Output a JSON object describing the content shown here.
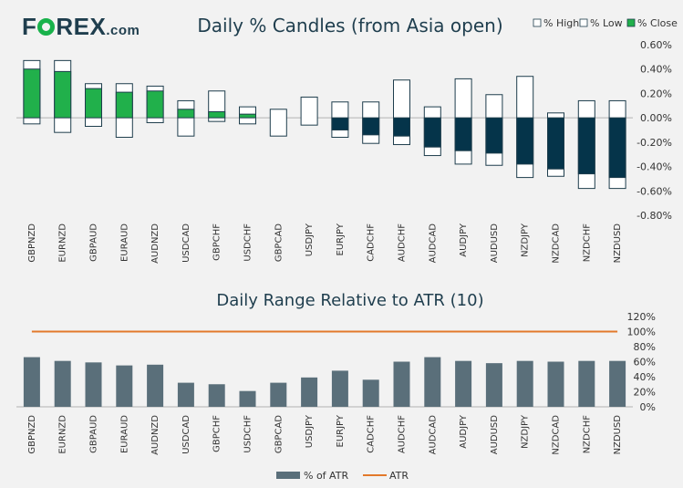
{
  "brand": {
    "part1": "F",
    "part2": "REX",
    "domain": ".com"
  },
  "chart_data": [
    {
      "type": "candlestick",
      "title": "Daily % Candles (from Asia open)",
      "ylim": [
        -0.8,
        0.6
      ],
      "yticks": [
        0.6,
        0.4,
        0.2,
        0.0,
        -0.2,
        -0.4,
        -0.6,
        -0.8
      ],
      "ytick_labels": [
        "0.60%",
        "0.40%",
        "0.20%",
        "0.00%",
        "-0.20%",
        "-0.40%",
        "-0.60%",
        "-0.80%"
      ],
      "legend": [
        {
          "name": "% High",
          "color": "#ffffff"
        },
        {
          "name": "% Low",
          "color": "#ffffff"
        },
        {
          "name": "% Close",
          "color": "#21b04b"
        }
      ],
      "categories": [
        "GBPNZD",
        "EURNZD",
        "GBPAUD",
        "EURAUD",
        "AUDNZD",
        "USDCAD",
        "GBPCHF",
        "USDCHF",
        "GBPCAD",
        "USDJPY",
        "EURJPY",
        "CADCHF",
        "AUDCHF",
        "AUDCAD",
        "AUDJPY",
        "AUDUSD",
        "NZDJPY",
        "NZDCAD",
        "NZDCHF",
        "NZDUSD"
      ],
      "series": [
        {
          "name": "% High",
          "values": [
            0.47,
            0.47,
            0.28,
            0.28,
            0.26,
            0.14,
            0.22,
            0.09,
            0.07,
            0.17,
            0.13,
            0.13,
            0.31,
            0.09,
            0.32,
            0.19,
            0.34,
            0.04,
            0.14,
            0.14
          ]
        },
        {
          "name": "% Low",
          "values": [
            -0.05,
            -0.12,
            -0.07,
            -0.16,
            -0.04,
            -0.15,
            -0.03,
            -0.05,
            -0.15,
            -0.06,
            -0.16,
            -0.21,
            -0.22,
            -0.31,
            -0.38,
            -0.39,
            -0.49,
            -0.48,
            -0.58,
            -0.58
          ]
        },
        {
          "name": "% Close",
          "values": [
            0.4,
            0.38,
            0.24,
            0.21,
            0.22,
            0.07,
            0.05,
            0.03,
            0.0,
            0.0,
            -0.1,
            -0.14,
            -0.15,
            -0.24,
            -0.27,
            -0.29,
            -0.38,
            -0.42,
            -0.46,
            -0.49
          ]
        }
      ]
    },
    {
      "type": "bar",
      "title": "Daily Range Relative to ATR (10)",
      "ylim": [
        0,
        120
      ],
      "yticks": [
        0,
        20,
        40,
        60,
        80,
        100,
        120
      ],
      "ytick_labels": [
        "0%",
        "20%",
        "40%",
        "60%",
        "80%",
        "100%",
        "120%"
      ],
      "categories": [
        "GBPNZD",
        "EURNZD",
        "GBPAUD",
        "EURAUD",
        "AUDNZD",
        "USDCAD",
        "GBPCHF",
        "USDCHF",
        "GBPCAD",
        "USDJPY",
        "EURJPY",
        "CADCHF",
        "AUDCHF",
        "AUDCAD",
        "AUDJPY",
        "AUDUSD",
        "NZDJPY",
        "NZDCAD",
        "NZDCHF",
        "NZDUSD"
      ],
      "series": [
        {
          "name": "% of ATR",
          "color": "#5a6f7a",
          "values": [
            66,
            61,
            59,
            55,
            56,
            32,
            30,
            21,
            32,
            39,
            48,
            36,
            60,
            66,
            61,
            58,
            61,
            60,
            61,
            61
          ]
        },
        {
          "name": "ATR",
          "color": "#e2792b",
          "values": [
            100,
            100,
            100,
            100,
            100,
            100,
            100,
            100,
            100,
            100,
            100,
            100,
            100,
            100,
            100,
            100,
            100,
            100,
            100,
            100
          ]
        }
      ],
      "legend": [
        {
          "name": "% of ATR",
          "color": "#5a6f7a"
        },
        {
          "name": "ATR",
          "color": "#e2792b"
        }
      ]
    }
  ]
}
